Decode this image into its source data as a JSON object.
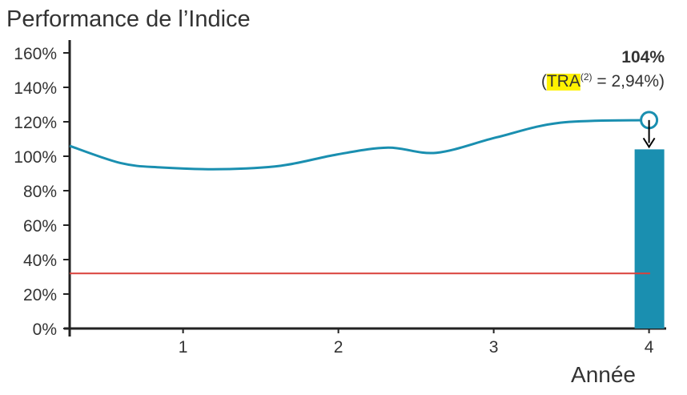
{
  "chart_data": {
    "type": "line",
    "title": "Performance de l’Indice",
    "x_label": "Année",
    "x": [
      0.27,
      0.6,
      0.86,
      1.24,
      1.63,
      1.99,
      2.32,
      2.63,
      3.02,
      3.43,
      4
    ],
    "series": [
      {
        "color": "#1a8fb0",
        "values": [
          106,
          96,
          93.5,
          92.5,
          94.5,
          101,
          105,
          102,
          111,
          119.5,
          121
        ]
      }
    ],
    "bar": {
      "x": 4,
      "value": 104,
      "value_label": "104%",
      "color": "#1a8fb0"
    },
    "threshold": {
      "value": 32,
      "color": "#d9403a"
    },
    "annotation": {
      "open": "(",
      "highlight": "TRA",
      "superscript": "(2)",
      "rest": " = 2,94%)",
      "highlight_color": "#fff200"
    },
    "xlim": [
      0.27,
      4.1
    ],
    "xticks": [
      1,
      2,
      3,
      4
    ],
    "ylim": [
      0,
      160
    ],
    "yticks": [
      {
        "value": 0,
        "label": "0%"
      },
      {
        "value": 20,
        "label": "20%"
      },
      {
        "value": 40,
        "label": "40%"
      },
      {
        "value": 60,
        "label": "60%"
      },
      {
        "value": 80,
        "label": "80%"
      },
      {
        "value": 100,
        "label": "100%"
      },
      {
        "value": 120,
        "label": "120%"
      },
      {
        "value": 140,
        "label": "140%"
      },
      {
        "value": 160,
        "label": "160%"
      }
    ]
  }
}
